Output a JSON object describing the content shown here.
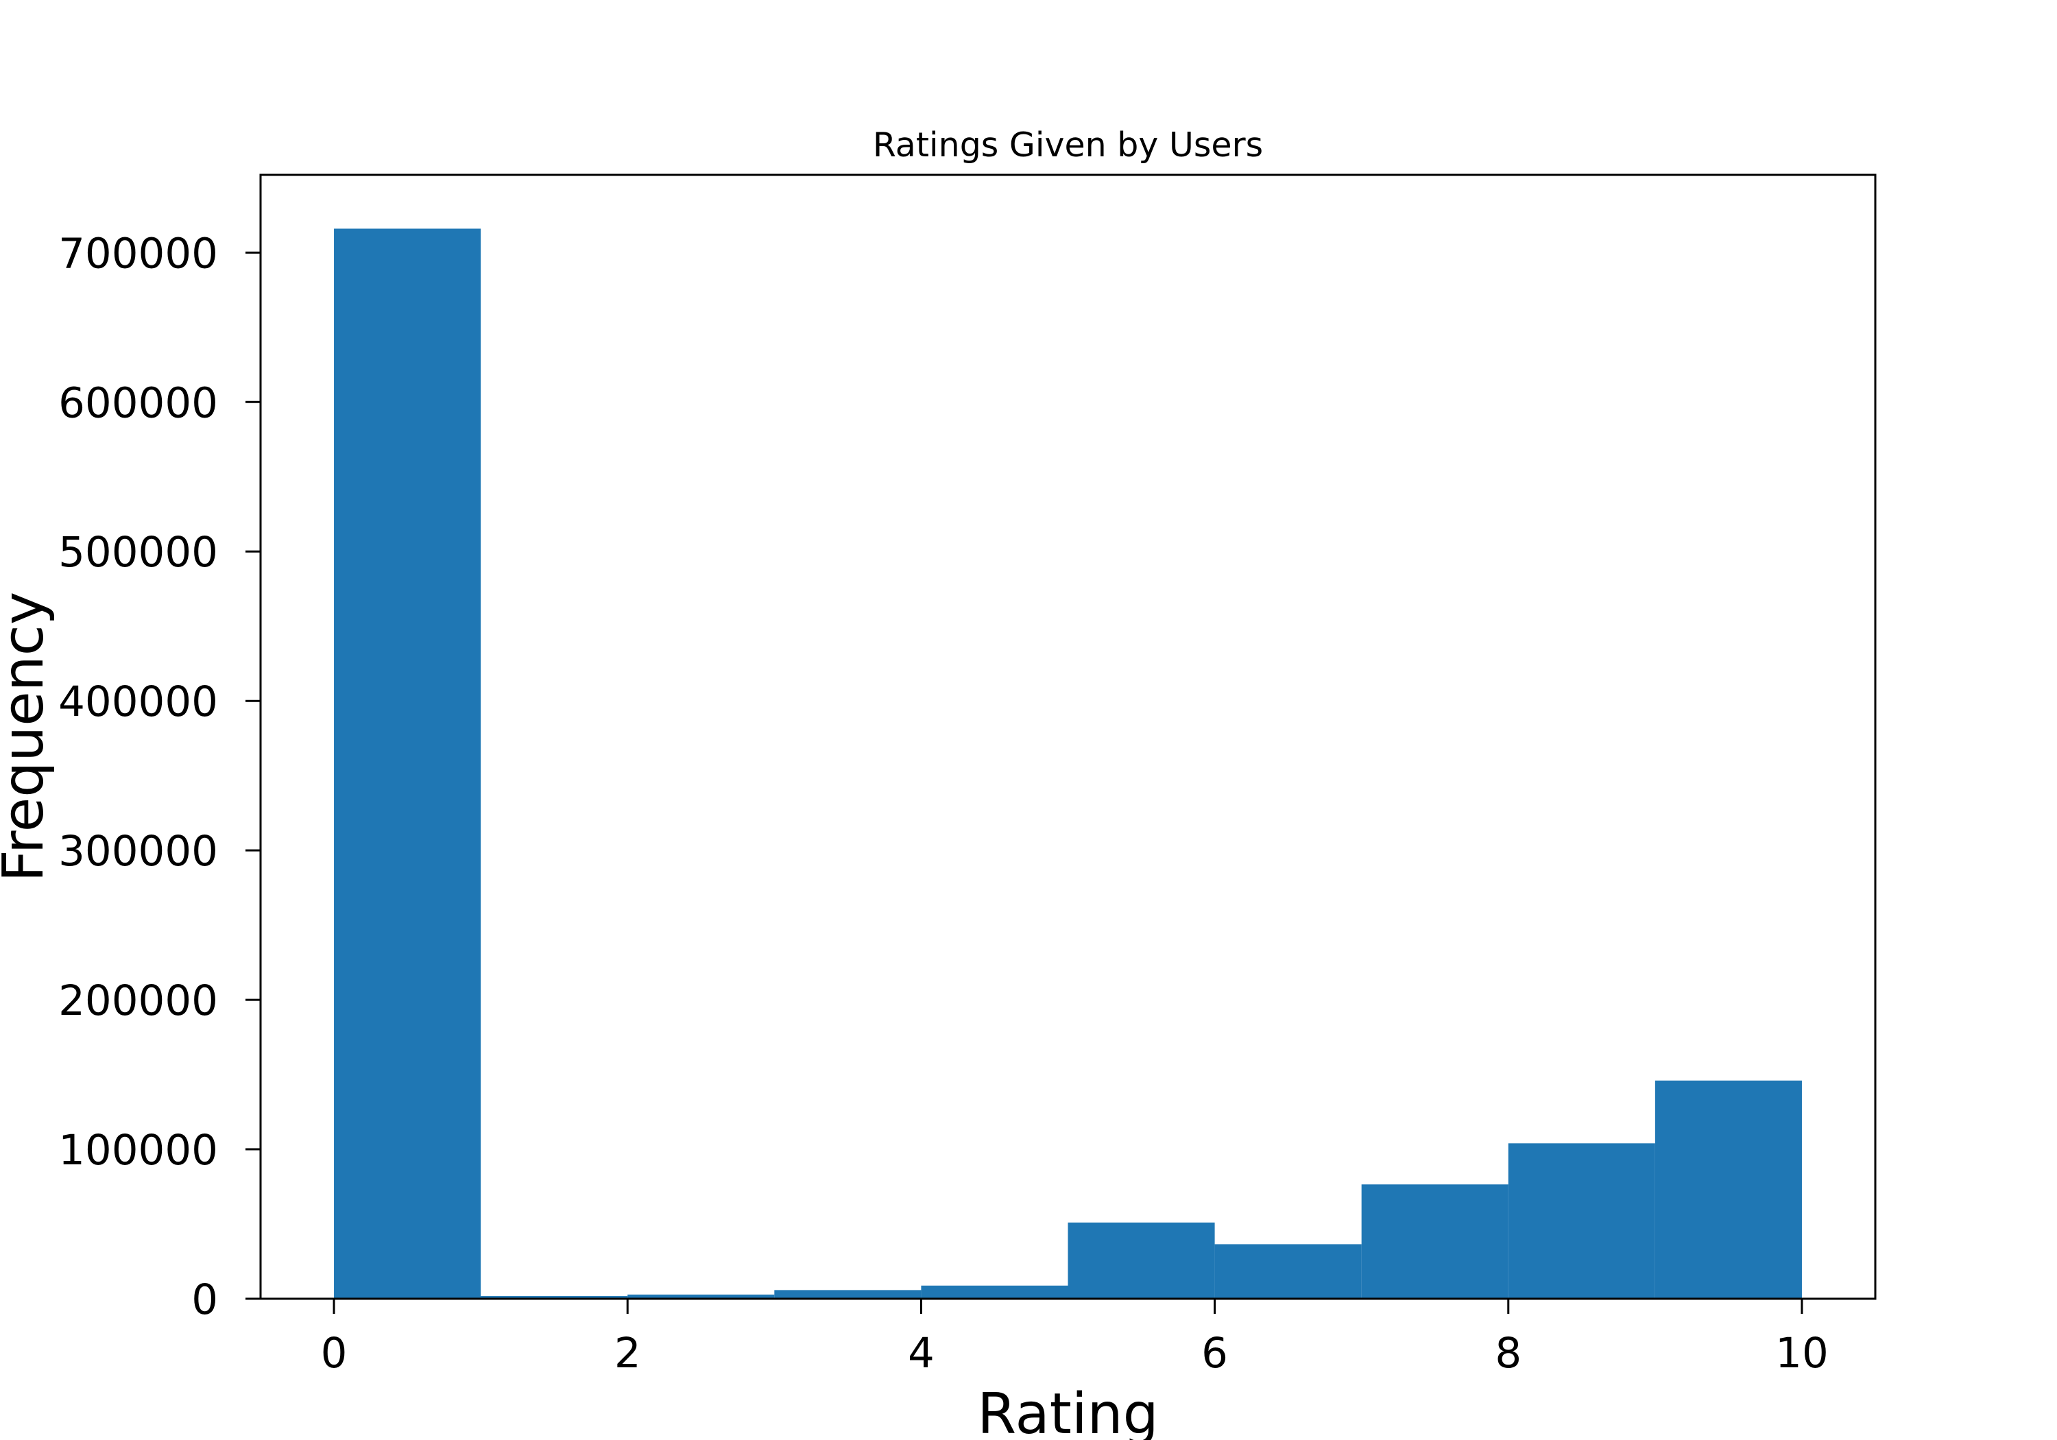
{
  "chart_data": {
    "type": "bar",
    "title": "Ratings Given by Users",
    "xlabel": "Rating",
    "ylabel": "Frequency",
    "bins": [
      {
        "x0": 0,
        "x1": 1,
        "value": 716000
      },
      {
        "x0": 1,
        "x1": 2,
        "value": 1800
      },
      {
        "x0": 2,
        "x1": 3,
        "value": 2800
      },
      {
        "x0": 3,
        "x1": 4,
        "value": 5800
      },
      {
        "x0": 4,
        "x1": 5,
        "value": 8800
      },
      {
        "x0": 5,
        "x1": 6,
        "value": 51000
      },
      {
        "x0": 6,
        "x1": 7,
        "value": 36500
      },
      {
        "x0": 7,
        "x1": 8,
        "value": 76500
      },
      {
        "x0": 8,
        "x1": 9,
        "value": 104000
      },
      {
        "x0": 9,
        "x1": 10,
        "value": 146000
      }
    ],
    "xlim": [
      -0.5,
      10.5
    ],
    "ylim": [
      0,
      752000
    ],
    "xticks": [
      0,
      2,
      4,
      6,
      8,
      10
    ],
    "xtick_labels": [
      "0",
      "2",
      "4",
      "6",
      "8",
      "10"
    ],
    "yticks": [
      0,
      100000,
      200000,
      300000,
      400000,
      500000,
      600000,
      700000
    ],
    "ytick_labels": [
      "0",
      "100000",
      "200000",
      "300000",
      "400000",
      "500000",
      "600000",
      "700000"
    ],
    "bar_color": "#1f77b4",
    "grid": false,
    "legend": "none"
  }
}
